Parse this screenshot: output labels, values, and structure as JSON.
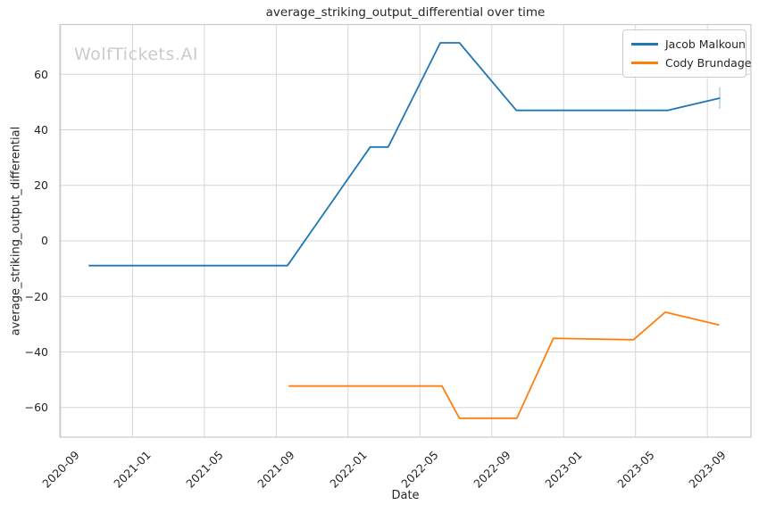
{
  "title": "average_striking_output_differential over time",
  "watermark": "WolfTickets.AI",
  "legend": {
    "items": [
      {
        "label": "Jacob Malkoun",
        "color": "#1f77b4"
      },
      {
        "label": "Cody Brundage",
        "color": "#ff7f0e"
      }
    ]
  },
  "colors": {
    "text": "#262626",
    "watermark": "#cbcbcb",
    "grid": "#d6d6d6",
    "spine": "#c9c9c9",
    "background": "#ffffff"
  },
  "chart_data": {
    "type": "line",
    "title": "average_striking_output_differential over time",
    "xlabel": "Date",
    "ylabel": "average_striking_output_differential",
    "grid": true,
    "legend_position": "upper right",
    "x_ticks": [
      "2020-09",
      "2021-01",
      "2021-05",
      "2021-09",
      "2022-01",
      "2022-05",
      "2022-09",
      "2023-01",
      "2023-05",
      "2023-09"
    ],
    "y_ticks": [
      60,
      40,
      20,
      0,
      -20,
      -40,
      -60
    ],
    "xlim": [
      "2020-08-30",
      "2023-11-14"
    ],
    "ylim": [
      -70.7,
      77.9
    ],
    "series": [
      {
        "name": "Jacob Malkoun",
        "color": "#1f77b4",
        "points": [
          {
            "date": "2020-10-18",
            "value": -8.9
          },
          {
            "date": "2021-09-20",
            "value": -8.9
          },
          {
            "date": "2022-02-08",
            "value": 33.8
          },
          {
            "date": "2022-03-08",
            "value": 33.8
          },
          {
            "date": "2022-06-05",
            "value": 71.3
          },
          {
            "date": "2022-07-07",
            "value": 71.3
          },
          {
            "date": "2022-10-12",
            "value": 47.0
          },
          {
            "date": "2023-06-25",
            "value": 47.0
          },
          {
            "date": "2023-09-22",
            "value": 51.4
          }
        ],
        "end_bar": {
          "y_low": 47.5,
          "y_high": 55.3
        }
      },
      {
        "name": "Cody Brundage",
        "color": "#ff7f0e",
        "points": [
          {
            "date": "2021-09-22",
            "value": -52.3
          },
          {
            "date": "2022-06-08",
            "value": -52.3
          },
          {
            "date": "2022-07-07",
            "value": -63.9
          },
          {
            "date": "2022-10-13",
            "value": -63.9
          },
          {
            "date": "2022-12-14",
            "value": -35.1
          },
          {
            "date": "2023-04-28",
            "value": -35.6
          },
          {
            "date": "2023-06-21",
            "value": -25.7
          },
          {
            "date": "2023-09-21",
            "value": -30.3
          }
        ]
      }
    ]
  }
}
